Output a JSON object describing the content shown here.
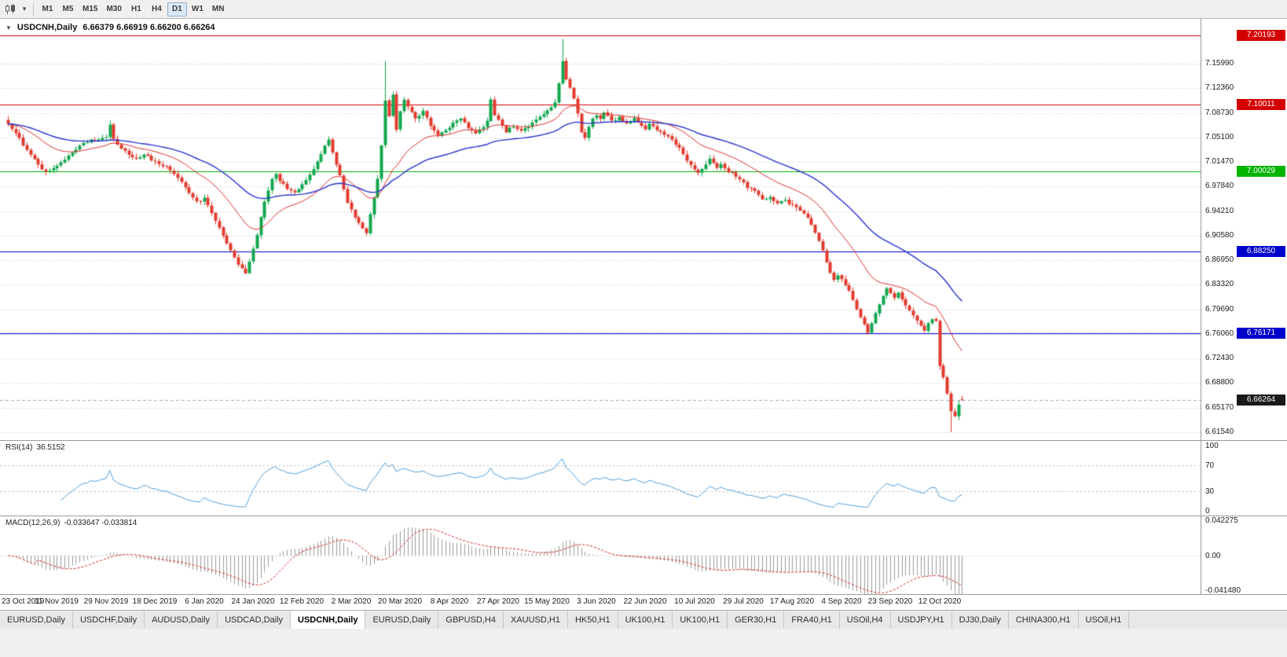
{
  "icons": {
    "chart_type_caret": "▾",
    "one_click_trading": "▼"
  },
  "toolbar": {
    "timeframes": [
      {
        "label": "M1",
        "active": false
      },
      {
        "label": "M5",
        "active": false
      },
      {
        "label": "M15",
        "active": false
      },
      {
        "label": "M30",
        "active": false
      },
      {
        "label": "H1",
        "active": false
      },
      {
        "label": "H4",
        "active": false
      },
      {
        "label": "D1",
        "active": true
      },
      {
        "label": "W1",
        "active": false
      },
      {
        "label": "MN",
        "active": false
      }
    ]
  },
  "chart": {
    "symbol_label": "USDCNH,Daily",
    "ohlc_text": "6.66379 6.66919 6.66200 6.66264"
  },
  "chart_data": {
    "type": "candlestick",
    "symbol": "USDCNH",
    "period": "Daily",
    "last_quote": {
      "open": 6.66379,
      "high": 6.66919,
      "low": 6.662,
      "close": 6.66264
    },
    "current_price_label": "6.66264",
    "seed": 20201021,
    "y_axis": {
      "min": 6.6036,
      "max": 7.225,
      "tick_labels": [
        "7.15990",
        "7.12360",
        "7.08730",
        "7.05100",
        "7.01470",
        "6.97840",
        "6.94210",
        "6.90580",
        "6.86950",
        "6.83320",
        "6.79690",
        "6.76060",
        "6.72430",
        "6.68800",
        "6.65170",
        "6.61540"
      ]
    },
    "x_axis": {
      "bar_count": 254,
      "tick_bars": [
        0,
        13,
        26,
        39,
        52,
        65,
        78,
        91,
        104,
        117,
        130,
        143,
        156,
        169,
        182,
        195,
        208,
        221,
        234,
        247
      ],
      "tick_labels": [
        "23 Oct 2019",
        "11 Nov 2019",
        "29 Nov 2019",
        "18 Dec 2019",
        "6 Jan 2020",
        "24 Jan 2020",
        "12 Feb 2020",
        "2 Mar 2020",
        "20 Mar 2020",
        "8 Apr 2020",
        "27 Apr 2020",
        "15 May 2020",
        "3 Jun 2020",
        "22 Jun 2020",
        "10 Jul 2020",
        "29 Jul 2020",
        "17 Aug 2020",
        "4 Sep 2020",
        "23 Sep 2020",
        "12 Oct 2020"
      ]
    },
    "horizontal_lines": [
      {
        "price": 7.20193,
        "label": "7.20193",
        "color": "#d40000"
      },
      {
        "price": 7.10011,
        "label": "7.10011",
        "color": "#d40000"
      },
      {
        "price": 7.00029,
        "label": "7.00029",
        "color": "#00b400"
      },
      {
        "price": 6.8825,
        "label": "6.88250",
        "color": "#0000cd"
      },
      {
        "price": 6.76171,
        "label": "6.76171",
        "color": "#0000cd"
      }
    ],
    "price_path": [
      [
        0,
        7.072
      ],
      [
        2,
        7.058
      ],
      [
        4,
        7.04
      ],
      [
        6,
        7.026
      ],
      [
        8,
        7.012
      ],
      [
        10,
        6.999
      ],
      [
        12,
        7.004
      ],
      [
        14,
        7.014
      ],
      [
        16,
        7.025
      ],
      [
        18,
        7.034
      ],
      [
        20,
        7.042
      ],
      [
        22,
        7.048
      ],
      [
        24,
        7.046
      ],
      [
        26,
        7.052
      ],
      [
        27,
        7.07
      ],
      [
        28,
        7.048
      ],
      [
        30,
        7.036
      ],
      [
        32,
        7.027
      ],
      [
        34,
        7.02
      ],
      [
        36,
        7.026
      ],
      [
        38,
        7.018
      ],
      [
        40,
        7.012
      ],
      [
        42,
        7.008
      ],
      [
        44,
        6.998
      ],
      [
        46,
        6.985
      ],
      [
        48,
        6.97
      ],
      [
        50,
        6.956
      ],
      [
        52,
        6.96
      ],
      [
        54,
        6.94
      ],
      [
        56,
        6.918
      ],
      [
        58,
        6.895
      ],
      [
        60,
        6.872
      ],
      [
        62,
        6.856
      ],
      [
        63,
        6.849
      ],
      [
        64,
        6.866
      ],
      [
        65,
        6.886
      ],
      [
        66,
        6.908
      ],
      [
        67,
        6.932
      ],
      [
        68,
        6.956
      ],
      [
        69,
        6.972
      ],
      [
        70,
        6.988
      ],
      [
        71,
        6.996
      ],
      [
        72,
        6.988
      ],
      [
        74,
        6.976
      ],
      [
        76,
        6.97
      ],
      [
        78,
        6.98
      ],
      [
        80,
        6.996
      ],
      [
        82,
        7.014
      ],
      [
        84,
        7.04
      ],
      [
        85,
        7.046
      ],
      [
        86,
        7.03
      ],
      [
        88,
        6.994
      ],
      [
        90,
        6.956
      ],
      [
        92,
        6.932
      ],
      [
        94,
        6.916
      ],
      [
        95,
        6.908
      ],
      [
        96,
        6.938
      ],
      [
        97,
        6.96
      ],
      [
        98,
        6.99
      ],
      [
        99,
        7.04
      ],
      [
        100,
        7.105
      ],
      [
        101,
        7.082
      ],
      [
        102,
        7.115
      ],
      [
        103,
        7.062
      ],
      [
        104,
        7.09
      ],
      [
        105,
        7.106
      ],
      [
        106,
        7.096
      ],
      [
        108,
        7.078
      ],
      [
        110,
        7.09
      ],
      [
        112,
        7.068
      ],
      [
        114,
        7.056
      ],
      [
        116,
        7.062
      ],
      [
        118,
        7.072
      ],
      [
        120,
        7.078
      ],
      [
        122,
        7.066
      ],
      [
        124,
        7.058
      ],
      [
        126,
        7.068
      ],
      [
        127,
        7.076
      ],
      [
        128,
        7.106
      ],
      [
        129,
        7.082
      ],
      [
        130,
        7.076
      ],
      [
        132,
        7.06
      ],
      [
        134,
        7.068
      ],
      [
        136,
        7.06
      ],
      [
        138,
        7.068
      ],
      [
        140,
        7.076
      ],
      [
        142,
        7.084
      ],
      [
        144,
        7.094
      ],
      [
        145,
        7.104
      ],
      [
        146,
        7.132
      ],
      [
        147,
        7.162
      ],
      [
        148,
        7.138
      ],
      [
        149,
        7.125
      ],
      [
        150,
        7.11
      ],
      [
        151,
        7.085
      ],
      [
        152,
        7.06
      ],
      [
        153,
        7.052
      ],
      [
        154,
        7.068
      ],
      [
        155,
        7.078
      ],
      [
        156,
        7.085
      ],
      [
        157,
        7.08
      ],
      [
        158,
        7.088
      ],
      [
        159,
        7.082
      ],
      [
        160,
        7.075
      ],
      [
        162,
        7.08
      ],
      [
        164,
        7.07
      ],
      [
        166,
        7.078
      ],
      [
        168,
        7.068
      ],
      [
        169,
        7.063
      ],
      [
        170,
        7.07
      ],
      [
        172,
        7.063
      ],
      [
        174,
        7.056
      ],
      [
        176,
        7.048
      ],
      [
        178,
        7.034
      ],
      [
        180,
        7.018
      ],
      [
        182,
        7.004
      ],
      [
        183,
        6.997
      ],
      [
        184,
        7.004
      ],
      [
        185,
        7.012
      ],
      [
        186,
        7.018
      ],
      [
        187,
        7.012
      ],
      [
        188,
        7.006
      ],
      [
        189,
        7.011
      ],
      [
        190,
        7.004
      ],
      [
        192,
        6.998
      ],
      [
        194,
        6.99
      ],
      [
        195,
        6.984
      ],
      [
        196,
        6.976
      ],
      [
        198,
        6.972
      ],
      [
        200,
        6.958
      ],
      [
        202,
        6.962
      ],
      [
        204,
        6.953
      ],
      [
        206,
        6.958
      ],
      [
        208,
        6.95
      ],
      [
        210,
        6.943
      ],
      [
        212,
        6.931
      ],
      [
        214,
        6.91
      ],
      [
        215,
        6.899
      ],
      [
        216,
        6.885
      ],
      [
        217,
        6.866
      ],
      [
        218,
        6.852
      ],
      [
        219,
        6.842
      ],
      [
        220,
        6.848
      ],
      [
        221,
        6.842
      ],
      [
        222,
        6.834
      ],
      [
        223,
        6.823
      ],
      [
        224,
        6.812
      ],
      [
        225,
        6.798
      ],
      [
        226,
        6.785
      ],
      [
        227,
        6.774
      ],
      [
        228,
        6.764
      ],
      [
        229,
        6.777
      ],
      [
        230,
        6.791
      ],
      [
        231,
        6.805
      ],
      [
        232,
        6.818
      ],
      [
        233,
        6.827
      ],
      [
        234,
        6.822
      ],
      [
        235,
        6.814
      ],
      [
        236,
        6.82
      ],
      [
        237,
        6.812
      ],
      [
        238,
        6.802
      ],
      [
        239,
        6.794
      ],
      [
        240,
        6.787
      ],
      [
        241,
        6.78
      ],
      [
        242,
        6.774
      ],
      [
        243,
        6.767
      ],
      [
        244,
        6.776
      ],
      [
        245,
        6.781
      ],
      [
        246,
        6.779
      ],
      [
        247,
        6.713
      ],
      [
        248,
        6.696
      ],
      [
        249,
        6.674
      ],
      [
        250,
        6.646
      ],
      [
        251,
        6.639
      ],
      [
        252,
        6.656
      ],
      [
        253,
        6.6626
      ]
    ],
    "key_points": {
      "covid_spike_bar": 100,
      "covid_spike_high": 7.164,
      "peak_bar": 147,
      "peak_high": 7.1965,
      "trough_bar": 250,
      "trough_low": 6.6153
    },
    "moving_averages": [
      {
        "period": 21,
        "color": "#e03030",
        "width": 1
      },
      {
        "period": 50,
        "color": "#2a35cc",
        "width": 1.4
      }
    ],
    "candle_colors": {
      "up": "#12a74e",
      "down": "#e23b2e"
    },
    "indicators": {
      "rsi": {
        "name": "RSI(14)",
        "value": "36.5152",
        "period": 14,
        "axis_labels": [
          "100",
          "70",
          "30",
          "0"
        ],
        "levels": [
          70,
          30
        ],
        "range": [
          0,
          100
        ],
        "line_color": "#55a0d8"
      },
      "macd": {
        "name": "MACD(12,26,9)",
        "values": "-0.033647 -0.033814",
        "fast": 12,
        "slow": 26,
        "signal": 9,
        "axis_labels": [
          "0.042275",
          "0.00",
          "-0.041480"
        ],
        "axis_values": [
          0.042275,
          0,
          -0.04148
        ],
        "range": [
          -0.04148,
          0.042275
        ],
        "histogram_color": "#9b9b9b",
        "signal_color": "#d42a2a"
      }
    }
  },
  "tabs": {
    "items": [
      {
        "label": "EURUSD,Daily",
        "active": false
      },
      {
        "label": "USDCHF,Daily",
        "active": false
      },
      {
        "label": "AUDUSD,Daily",
        "active": false
      },
      {
        "label": "USDCAD,Daily",
        "active": false
      },
      {
        "label": "USDCNH,Daily",
        "active": true
      },
      {
        "label": "EURUSD,Daily",
        "active": false
      },
      {
        "label": "GBPUSD,H4",
        "active": false
      },
      {
        "label": "XAUUSD,H1",
        "active": false
      },
      {
        "label": "HK50,H1",
        "active": false
      },
      {
        "label": "UK100,H1",
        "active": false
      },
      {
        "label": "UK100,H1",
        "active": false
      },
      {
        "label": "GER30,H1",
        "active": false
      },
      {
        "label": "FRA40,H1",
        "active": false
      },
      {
        "label": "USOil,H4",
        "active": false
      },
      {
        "label": "USDJPY,H1",
        "active": false
      },
      {
        "label": "DJ30,Daily",
        "active": false
      },
      {
        "label": "CHINA300,H1",
        "active": false
      },
      {
        "label": "USOil,H1",
        "active": false
      }
    ]
  }
}
